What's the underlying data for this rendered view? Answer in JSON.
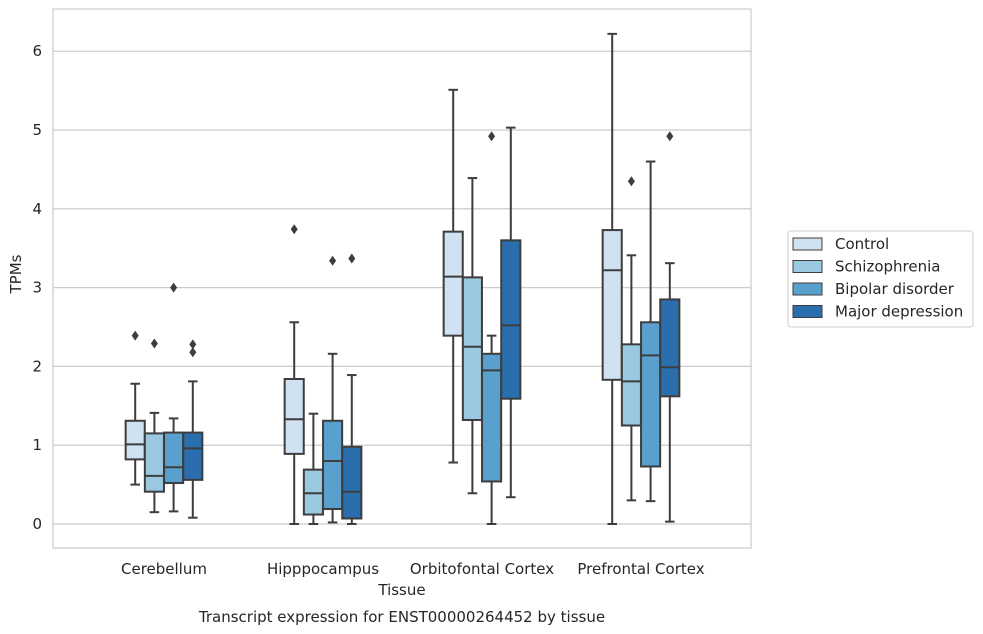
{
  "chart_data": {
    "type": "box",
    "caption": "Transcript expression for ENST00000264452 by tissue",
    "xlabel": "Tissue",
    "ylabel": "TPMs",
    "ylim": [
      -0.3,
      6.55
    ],
    "yticks": [
      "0",
      "1",
      "2",
      "3",
      "4",
      "5",
      "6"
    ],
    "grid": true,
    "legend_position": "right",
    "categories": [
      "Cerebellum",
      "Hipppocampus",
      "Orbitofontal Cortex",
      "Prefrontal Cortex"
    ],
    "series": [
      {
        "name": "Control",
        "color": "#d0e1f2",
        "boxes": [
          {
            "whislo": 0.5,
            "q1": 0.82,
            "med": 1.01,
            "q3": 1.31,
            "whishi": 1.78,
            "fliers": [
              2.39
            ]
          },
          {
            "whislo": 0.0,
            "q1": 0.89,
            "med": 1.33,
            "q3": 1.84,
            "whishi": 2.56,
            "fliers": [
              3.74
            ]
          },
          {
            "whislo": 0.78,
            "q1": 2.39,
            "med": 3.14,
            "q3": 3.71,
            "whishi": 5.51,
            "fliers": []
          },
          {
            "whislo": 0.0,
            "q1": 1.83,
            "med": 3.22,
            "q3": 3.73,
            "whishi": 6.22,
            "fliers": []
          }
        ]
      },
      {
        "name": "Schizophrenia",
        "color": "#9ac8e0",
        "boxes": [
          {
            "whislo": 0.15,
            "q1": 0.41,
            "med": 0.61,
            "q3": 1.15,
            "whishi": 1.41,
            "fliers": [
              2.29
            ]
          },
          {
            "whislo": 0.0,
            "q1": 0.12,
            "med": 0.39,
            "q3": 0.69,
            "whishi": 1.4,
            "fliers": []
          },
          {
            "whislo": 0.39,
            "q1": 1.32,
            "med": 2.25,
            "q3": 3.13,
            "whishi": 4.39,
            "fliers": []
          },
          {
            "whislo": 0.3,
            "q1": 1.25,
            "med": 1.81,
            "q3": 2.28,
            "whishi": 3.41,
            "fliers": [
              4.35
            ]
          }
        ]
      },
      {
        "name": "Bipolar disorder",
        "color": "#5aa0cf",
        "boxes": [
          {
            "whislo": 0.16,
            "q1": 0.52,
            "med": 0.72,
            "q3": 1.16,
            "whishi": 1.34,
            "fliers": [
              3.0
            ]
          },
          {
            "whislo": 0.02,
            "q1": 0.19,
            "med": 0.8,
            "q3": 1.31,
            "whishi": 2.16,
            "fliers": [
              3.34
            ]
          },
          {
            "whislo": 0.0,
            "q1": 0.54,
            "med": 1.95,
            "q3": 2.16,
            "whishi": 2.39,
            "fliers": [
              4.92
            ]
          },
          {
            "whislo": 0.29,
            "q1": 0.73,
            "med": 2.14,
            "q3": 2.56,
            "whishi": 4.6,
            "fliers": []
          }
        ]
      },
      {
        "name": "Major depression",
        "color": "#2a6eae",
        "boxes": [
          {
            "whislo": 0.08,
            "q1": 0.56,
            "med": 0.96,
            "q3": 1.16,
            "whishi": 1.81,
            "fliers": [
              2.18,
              2.28
            ]
          },
          {
            "whislo": 0.0,
            "q1": 0.07,
            "med": 0.41,
            "q3": 0.98,
            "whishi": 1.89,
            "fliers": [
              3.37
            ]
          },
          {
            "whislo": 0.34,
            "q1": 1.59,
            "med": 2.52,
            "q3": 3.6,
            "whishi": 5.03,
            "fliers": []
          },
          {
            "whislo": 0.03,
            "q1": 1.62,
            "med": 1.99,
            "q3": 2.85,
            "whishi": 3.31,
            "fliers": [
              4.92
            ]
          }
        ]
      }
    ]
  }
}
